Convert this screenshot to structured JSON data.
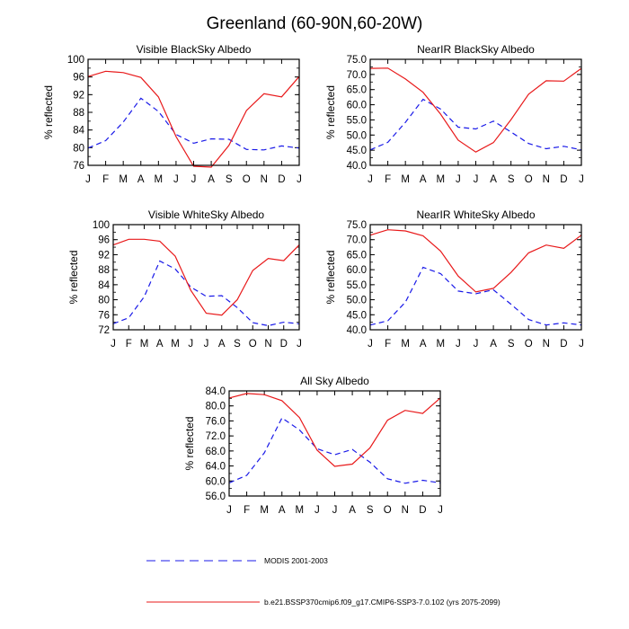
{
  "figure": {
    "title": "Greenland (60-90N,60-20W)",
    "background": "#ffffff"
  },
  "months": [
    "J",
    "F",
    "M",
    "A",
    "M",
    "J",
    "J",
    "A",
    "S",
    "O",
    "N",
    "D",
    "J"
  ],
  "colors": {
    "model": "#e8191a",
    "obs": "#1a1ae8"
  },
  "legend": {
    "obs_label": "MODIS 2001-2003",
    "model_label": "b.e21.BSSP370cmip6.f09_g17.CMIP6-SSP3-7.0.102 (yrs 2075-2099)"
  },
  "chart_data": [
    {
      "type": "line",
      "title": "Visible BlackSky Albedo",
      "ylabel": "% reflected",
      "ylim": [
        76,
        100
      ],
      "yticks": [
        "100",
        "96",
        "92",
        "88",
        "84",
        "80",
        "76"
      ],
      "ytick_values": [
        100,
        96,
        92,
        88,
        84,
        80,
        76
      ],
      "x": [
        "J",
        "F",
        "M",
        "A",
        "M",
        "J",
        "J",
        "A",
        "S",
        "O",
        "N",
        "D",
        "J"
      ],
      "series": [
        {
          "key": "obs",
          "style": "dashed",
          "values": [
            79.9,
            81.6,
            85.8,
            91.2,
            88.2,
            83.0,
            81.0,
            82.0,
            81.9,
            79.6,
            79.5,
            80.4,
            79.9
          ]
        },
        {
          "key": "model",
          "style": "solid",
          "values": [
            96.1,
            97.3,
            97.0,
            95.9,
            91.5,
            82.5,
            75.8,
            75.6,
            80.5,
            88.4,
            92.2,
            91.5,
            96.1
          ]
        }
      ]
    },
    {
      "type": "line",
      "title": "NearIR BlackSky Albedo",
      "ylabel": "% reflected",
      "ylim": [
        40,
        75
      ],
      "yticks": [
        "75.0",
        "70.0",
        "65.0",
        "60.0",
        "55.0",
        "50.0",
        "45.0",
        "40.0"
      ],
      "ytick_values": [
        75,
        70,
        65,
        60,
        55,
        50,
        45,
        40
      ],
      "x": [
        "J",
        "F",
        "M",
        "A",
        "M",
        "J",
        "J",
        "A",
        "S",
        "O",
        "N",
        "D",
        "J"
      ],
      "series": [
        {
          "key": "obs",
          "style": "dashed",
          "values": [
            45.1,
            47.6,
            54.2,
            61.8,
            58.6,
            52.6,
            52.0,
            54.6,
            51.0,
            47.2,
            45.5,
            46.3,
            45.1
          ]
        },
        {
          "key": "model",
          "style": "solid",
          "values": [
            72.0,
            72.1,
            68.5,
            64.1,
            56.9,
            48.3,
            44.4,
            47.5,
            55.1,
            63.5,
            67.9,
            67.8,
            72.0
          ]
        }
      ]
    },
    {
      "type": "line",
      "title": "Visible WhiteSky Albedo",
      "ylabel": "% reflected",
      "ylim": [
        72,
        100
      ],
      "yticks": [
        "100",
        "96",
        "92",
        "88",
        "84",
        "80",
        "76",
        "72"
      ],
      "ytick_values": [
        100,
        96,
        92,
        88,
        84,
        80,
        76,
        72
      ],
      "x": [
        "J",
        "F",
        "M",
        "A",
        "M",
        "J",
        "J",
        "A",
        "S",
        "O",
        "N",
        "D",
        "J"
      ],
      "series": [
        {
          "key": "obs",
          "style": "dashed",
          "values": [
            73.6,
            75.2,
            80.8,
            90.3,
            88.2,
            83.4,
            80.9,
            81.1,
            77.9,
            73.9,
            73.1,
            74.0,
            73.6
          ]
        },
        {
          "key": "model",
          "style": "solid",
          "values": [
            94.6,
            96.1,
            96.1,
            95.6,
            91.6,
            82.5,
            76.4,
            75.9,
            80.0,
            87.8,
            91.0,
            90.4,
            94.6
          ]
        }
      ]
    },
    {
      "type": "line",
      "title": "NearIR WhiteSky Albedo",
      "ylabel": "% reflected",
      "ylim": [
        40,
        75
      ],
      "yticks": [
        "75.0",
        "70.0",
        "65.0",
        "60.0",
        "55.0",
        "50.0",
        "45.0",
        "40.0"
      ],
      "ytick_values": [
        75,
        70,
        65,
        60,
        55,
        50,
        45,
        40
      ],
      "x": [
        "J",
        "F",
        "M",
        "A",
        "M",
        "J",
        "J",
        "A",
        "S",
        "O",
        "N",
        "D",
        "J"
      ],
      "series": [
        {
          "key": "obs",
          "style": "dashed",
          "values": [
            41.6,
            43.0,
            49.2,
            60.8,
            58.7,
            52.9,
            52.0,
            53.3,
            48.5,
            43.4,
            41.6,
            42.3,
            41.6
          ]
        },
        {
          "key": "model",
          "style": "solid",
          "values": [
            71.5,
            73.3,
            72.9,
            71.3,
            66.2,
            57.9,
            52.6,
            53.8,
            59.1,
            65.6,
            68.2,
            67.1,
            71.5
          ]
        }
      ]
    },
    {
      "type": "line",
      "title": "All Sky Albedo",
      "ylabel": "% reflected",
      "ylim": [
        56,
        84
      ],
      "yticks": [
        "84.0",
        "80.0",
        "76.0",
        "72.0",
        "68.0",
        "64.0",
        "60.0",
        "56.0"
      ],
      "ytick_values": [
        84,
        80,
        76,
        72,
        68,
        64,
        60,
        56
      ],
      "x": [
        "J",
        "F",
        "M",
        "A",
        "M",
        "J",
        "J",
        "A",
        "S",
        "O",
        "N",
        "D",
        "J"
      ],
      "series": [
        {
          "key": "obs",
          "style": "dashed",
          "values": [
            59.5,
            61.5,
            67.5,
            76.8,
            73.6,
            68.6,
            67.0,
            68.4,
            65.0,
            60.6,
            59.4,
            60.2,
            59.5
          ]
        },
        {
          "key": "model",
          "style": "solid",
          "values": [
            82.1,
            83.3,
            83.0,
            81.4,
            76.9,
            68.2,
            63.9,
            64.5,
            68.8,
            76.2,
            78.8,
            78.0,
            82.1
          ]
        }
      ]
    }
  ]
}
